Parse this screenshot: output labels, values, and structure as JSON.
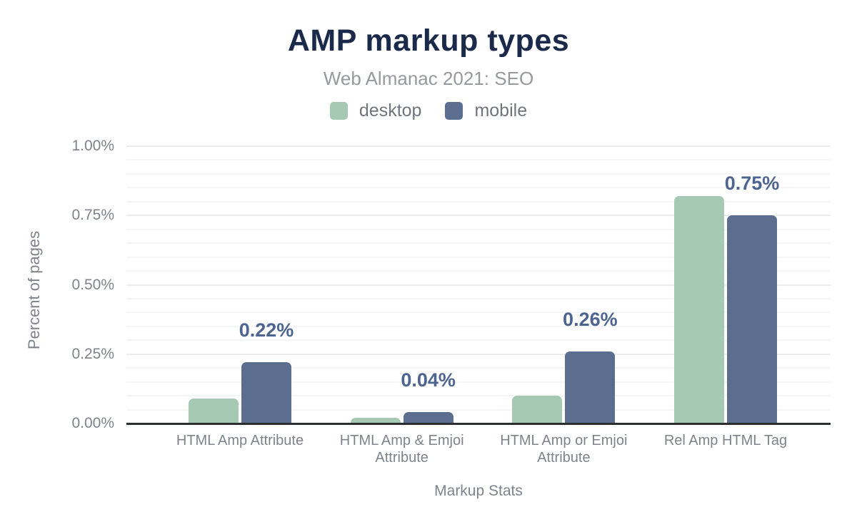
{
  "chart_data": {
    "type": "bar",
    "title": "AMP markup types",
    "subtitle": "Web Almanac 2021: SEO",
    "xlabel": "Markup Stats",
    "ylabel": "Percent of pages",
    "categories": [
      "HTML Amp Attribute",
      "HTML Amp & Emjoi Attribute",
      "HTML Amp or Emjoi Attribute",
      "Rel Amp HTML Tag"
    ],
    "series": [
      {
        "name": "desktop",
        "color": "#a6c9b4",
        "values": [
          0.09,
          0.02,
          0.1,
          0.82
        ]
      },
      {
        "name": "mobile",
        "color": "#5b6e90",
        "values": [
          0.22,
          0.04,
          0.26,
          0.75
        ]
      }
    ],
    "bar_labels": {
      "series": "mobile",
      "values": [
        "0.22%",
        "0.04%",
        "0.26%",
        "0.75%"
      ],
      "color": "#4d6490"
    },
    "ylim": [
      0,
      1
    ],
    "yticks": [
      {
        "value": 0,
        "label": "0.00%"
      },
      {
        "value": 0.25,
        "label": "0.25%"
      },
      {
        "value": 0.5,
        "label": "0.50%"
      },
      {
        "value": 0.75,
        "label": "0.75%"
      },
      {
        "value": 1,
        "label": "1.00%"
      }
    ],
    "minor_grid_step": 0.05,
    "grid": true,
    "legend_position": "top"
  }
}
